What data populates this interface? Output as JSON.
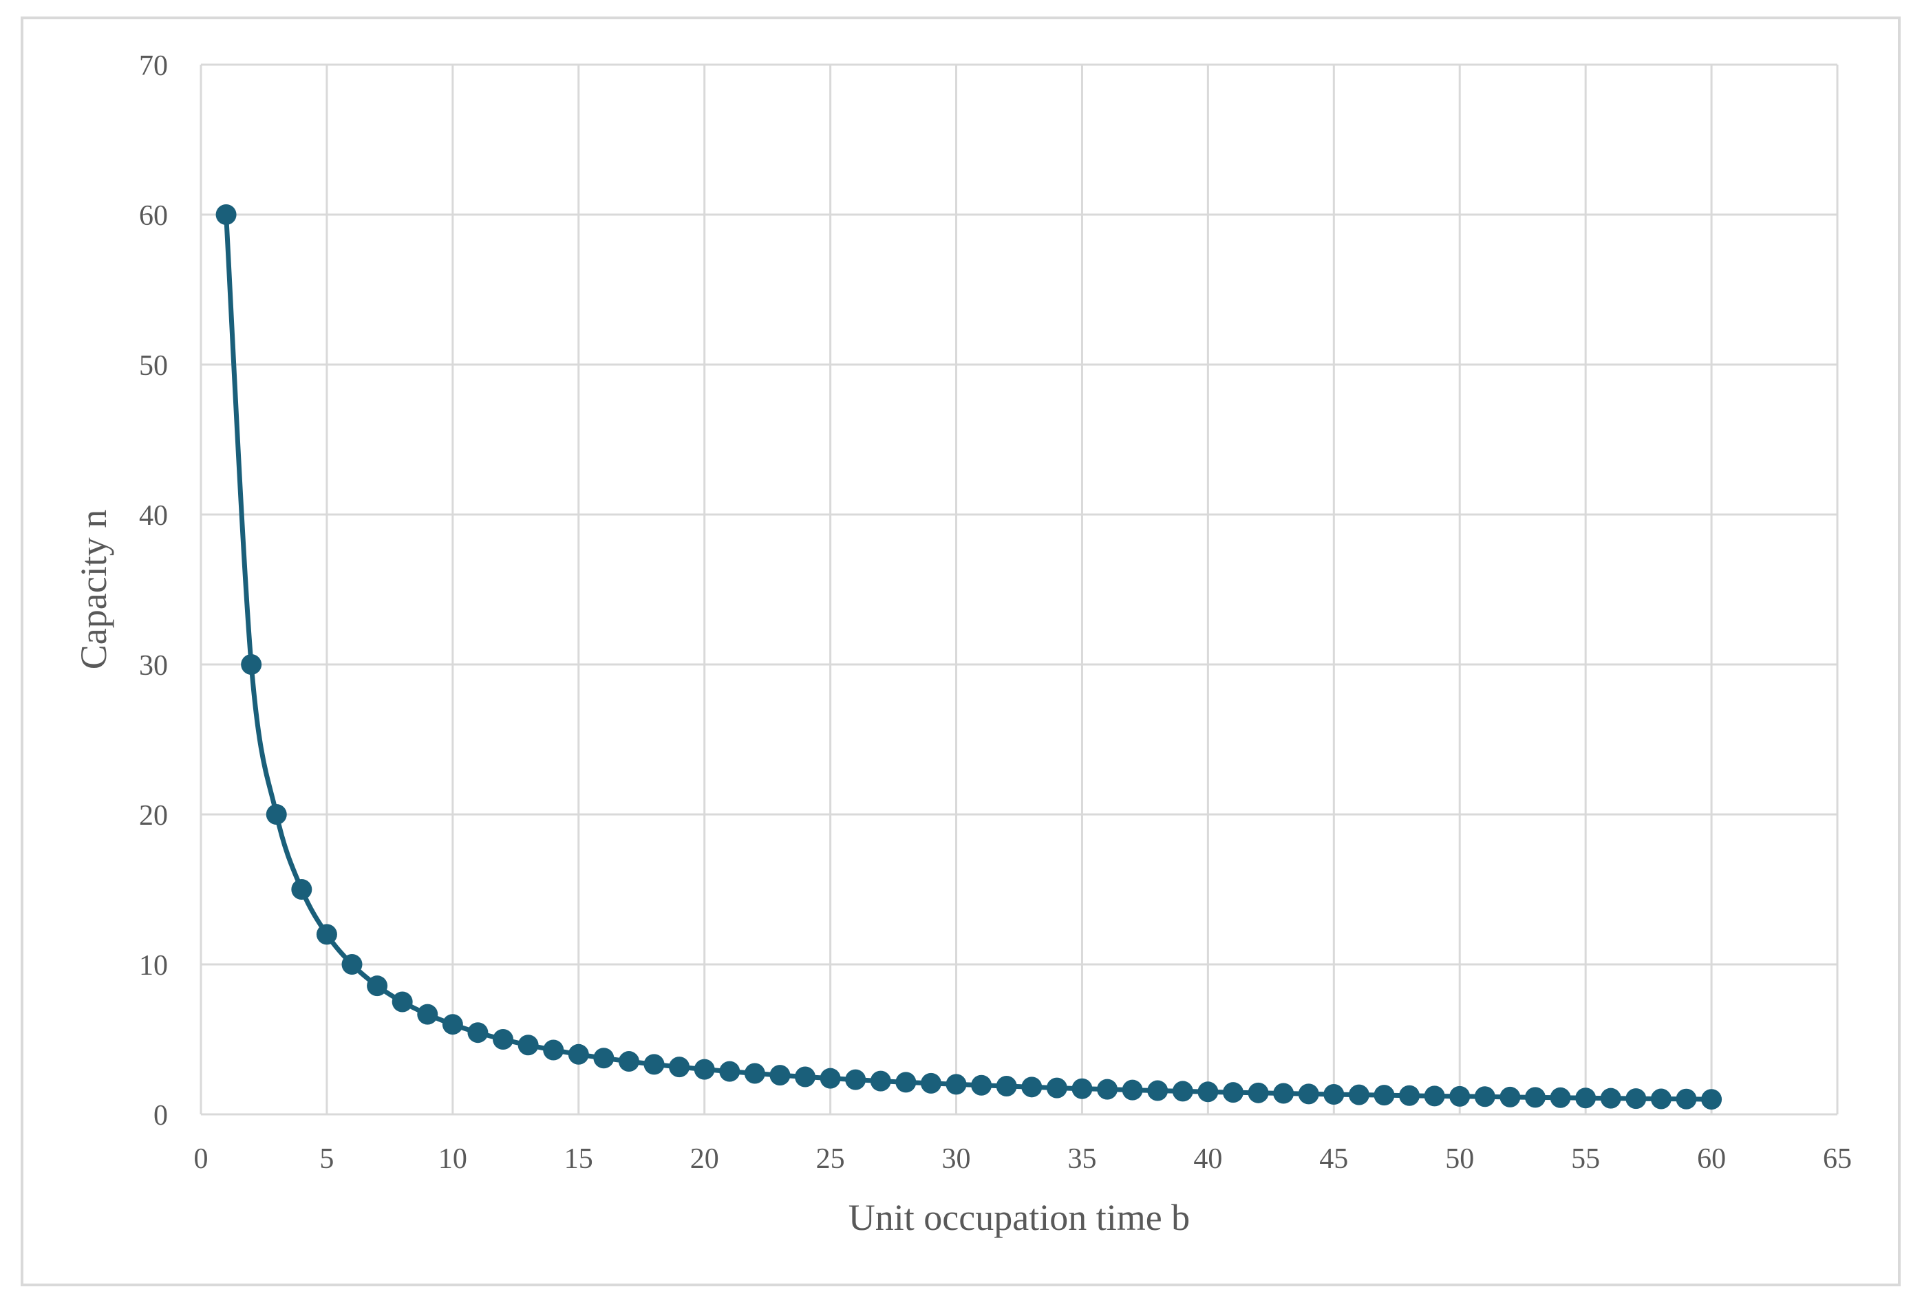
{
  "chart_data": {
    "type": "scatter",
    "title": "",
    "xlabel": "Unit occupation time b",
    "ylabel": "Capacity n",
    "xlim": [
      0,
      65
    ],
    "ylim": [
      0,
      70
    ],
    "x_ticks": [
      0,
      5,
      10,
      15,
      20,
      25,
      30,
      35,
      40,
      45,
      50,
      55,
      60,
      65
    ],
    "y_ticks": [
      0,
      10,
      20,
      30,
      40,
      50,
      60,
      70
    ],
    "grid": true,
    "legend": "none",
    "smooth_line": true,
    "marker": "circle",
    "color": "#1a5f7a",
    "series": [
      {
        "x": [
          1,
          2,
          3,
          4,
          5,
          6,
          7,
          8,
          9,
          10,
          11,
          12,
          13,
          14,
          15,
          16,
          17,
          18,
          19,
          20,
          21,
          22,
          23,
          24,
          25,
          26,
          27,
          28,
          29,
          30,
          31,
          32,
          33,
          34,
          35,
          36,
          37,
          38,
          39,
          40,
          41,
          42,
          43,
          44,
          45,
          46,
          47,
          48,
          49,
          50,
          51,
          52,
          53,
          54,
          55,
          56,
          57,
          58,
          59,
          60
        ],
        "y": [
          60,
          30,
          20,
          15,
          12,
          10,
          8.57,
          7.5,
          6.67,
          6,
          5.45,
          5,
          4.62,
          4.29,
          4,
          3.75,
          3.53,
          3.33,
          3.16,
          3,
          2.86,
          2.73,
          2.61,
          2.5,
          2.4,
          2.31,
          2.22,
          2.14,
          2.07,
          2,
          1.94,
          1.88,
          1.82,
          1.76,
          1.71,
          1.67,
          1.62,
          1.58,
          1.54,
          1.5,
          1.46,
          1.43,
          1.4,
          1.36,
          1.33,
          1.3,
          1.28,
          1.25,
          1.22,
          1.2,
          1.18,
          1.15,
          1.13,
          1.11,
          1.09,
          1.07,
          1.05,
          1.03,
          1.02,
          1
        ]
      }
    ]
  }
}
